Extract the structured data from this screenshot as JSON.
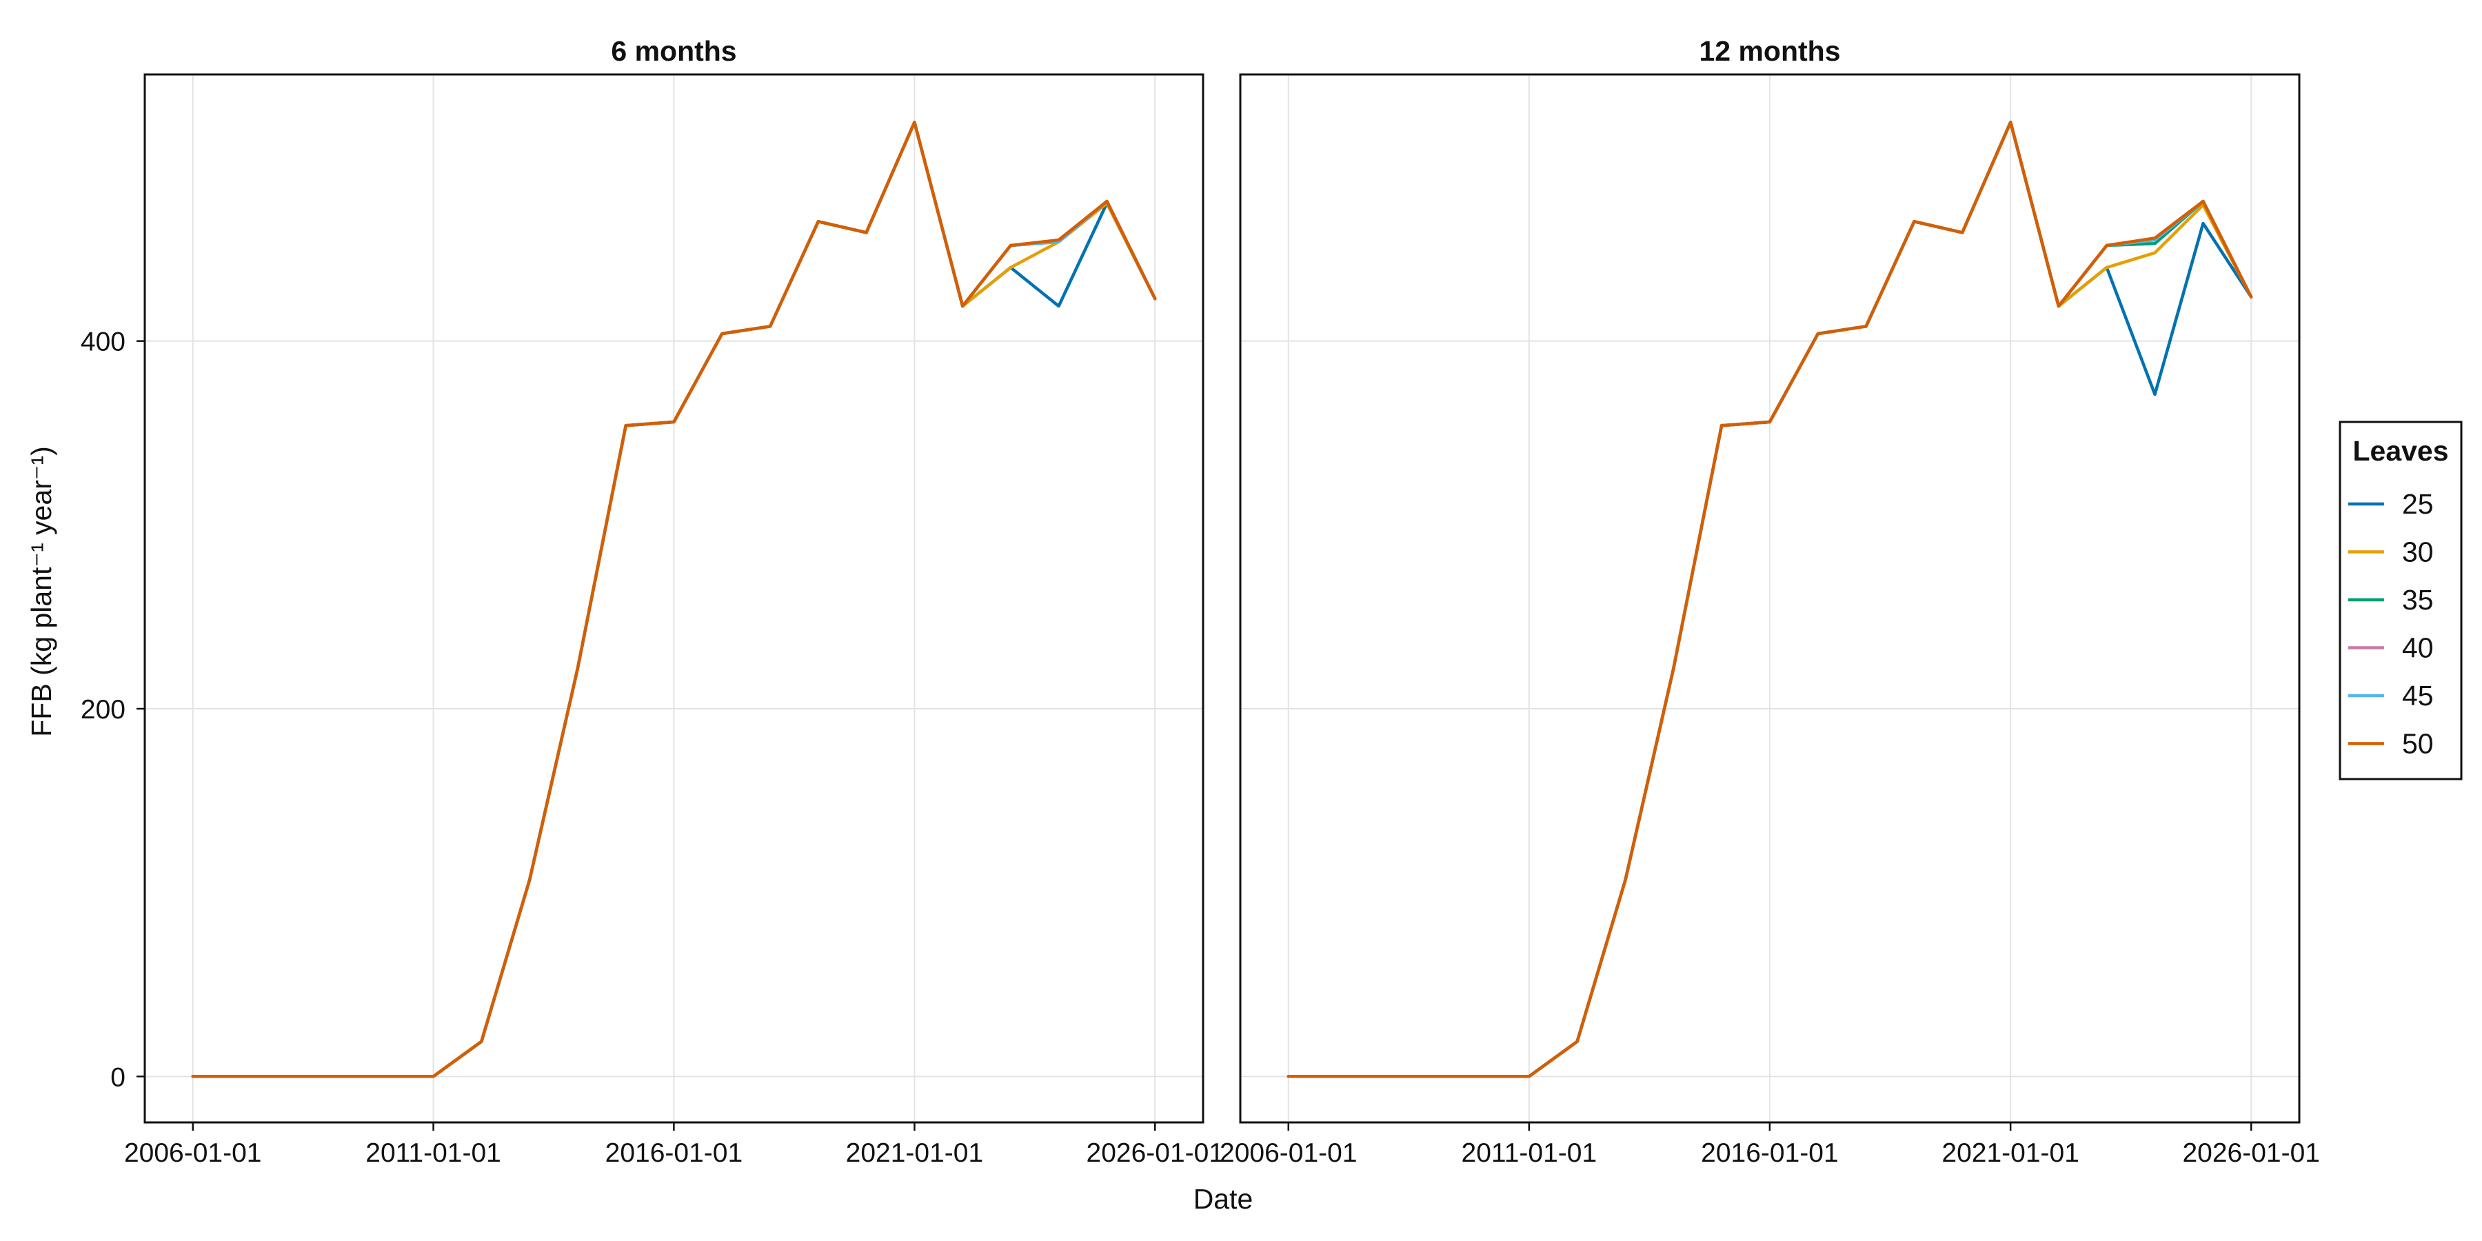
{
  "chart_data": {
    "type": "line",
    "xlabel": "Date",
    "ylabel": "FFB (kg plant⁻¹ year⁻¹)",
    "grid": true,
    "legend": {
      "title": "Leaves",
      "placement": "right"
    },
    "colors": [
      "#0072b2",
      "#e69f00",
      "#009e73",
      "#cc79a7",
      "#56b4e9",
      "#d55e00"
    ],
    "xlim": [
      "2005-01-01",
      "2027-01-01"
    ],
    "ylim": [
      -25,
      545
    ],
    "xticks": [
      "2006-01-01",
      "2011-01-01",
      "2016-01-01",
      "2021-01-01",
      "2026-01-01"
    ],
    "yticks": [
      0,
      200,
      400
    ],
    "dates": [
      "2006-01-01",
      "2007-01-01",
      "2008-01-01",
      "2009-01-01",
      "2010-01-01",
      "2011-01-01",
      "2012-01-01",
      "2013-01-01",
      "2014-01-01",
      "2015-01-01",
      "2016-01-01",
      "2017-01-01",
      "2018-01-01",
      "2019-01-01",
      "2020-01-01",
      "2021-01-01",
      "2022-01-01",
      "2023-01-01",
      "2024-01-01",
      "2025-01-01",
      "2026-01-01"
    ],
    "panels": [
      {
        "title": "6 months",
        "series": [
          {
            "name": "25",
            "values": [
              0,
              0,
              0,
              0,
              0,
              0,
              19,
              107,
              222,
              354,
              356,
              404,
              408,
              465,
              459,
              519,
              419,
              440,
              419,
              475,
              423
            ]
          },
          {
            "name": "30",
            "values": [
              0,
              0,
              0,
              0,
              0,
              0,
              19,
              107,
              222,
              354,
              356,
              404,
              408,
              465,
              459,
              519,
              419,
              440,
              454,
              475,
              423
            ]
          },
          {
            "name": "35",
            "values": [
              0,
              0,
              0,
              0,
              0,
              0,
              19,
              107,
              222,
              354,
              356,
              404,
              408,
              465,
              459,
              519,
              419,
              452,
              454,
              476,
              423
            ]
          },
          {
            "name": "40",
            "values": [
              0,
              0,
              0,
              0,
              0,
              0,
              19,
              107,
              222,
              354,
              356,
              404,
              408,
              465,
              459,
              519,
              419,
              452,
              454,
              476,
              423
            ]
          },
          {
            "name": "45",
            "values": [
              0,
              0,
              0,
              0,
              0,
              0,
              19,
              107,
              222,
              354,
              356,
              404,
              408,
              465,
              459,
              519,
              419,
              452,
              454,
              476,
              423
            ]
          },
          {
            "name": "50",
            "values": [
              0,
              0,
              0,
              0,
              0,
              0,
              19,
              107,
              222,
              354,
              356,
              404,
              408,
              465,
              459,
              519,
              419,
              452,
              455,
              476,
              423
            ]
          }
        ]
      },
      {
        "title": "12 months",
        "series": [
          {
            "name": "25",
            "values": [
              0,
              0,
              0,
              0,
              0,
              0,
              19,
              107,
              222,
              354,
              356,
              404,
              408,
              465,
              459,
              519,
              419,
              440,
              371,
              464,
              424
            ]
          },
          {
            "name": "30",
            "values": [
              0,
              0,
              0,
              0,
              0,
              0,
              19,
              107,
              222,
              354,
              356,
              404,
              408,
              465,
              459,
              519,
              419,
              440,
              448,
              474,
              424
            ]
          },
          {
            "name": "35",
            "values": [
              0,
              0,
              0,
              0,
              0,
              0,
              19,
              107,
              222,
              354,
              356,
              404,
              408,
              465,
              459,
              519,
              419,
              452,
              453,
              476,
              424
            ]
          },
          {
            "name": "40",
            "values": [
              0,
              0,
              0,
              0,
              0,
              0,
              19,
              107,
              222,
              354,
              356,
              404,
              408,
              465,
              459,
              519,
              419,
              452,
              455,
              476,
              424
            ]
          },
          {
            "name": "45",
            "values": [
              0,
              0,
              0,
              0,
              0,
              0,
              19,
              107,
              222,
              354,
              356,
              404,
              408,
              465,
              459,
              519,
              419,
              452,
              455,
              476,
              424
            ]
          },
          {
            "name": "50",
            "values": [
              0,
              0,
              0,
              0,
              0,
              0,
              19,
              107,
              222,
              354,
              356,
              404,
              408,
              465,
              459,
              519,
              419,
              452,
              456,
              476,
              424
            ]
          }
        ]
      }
    ]
  }
}
